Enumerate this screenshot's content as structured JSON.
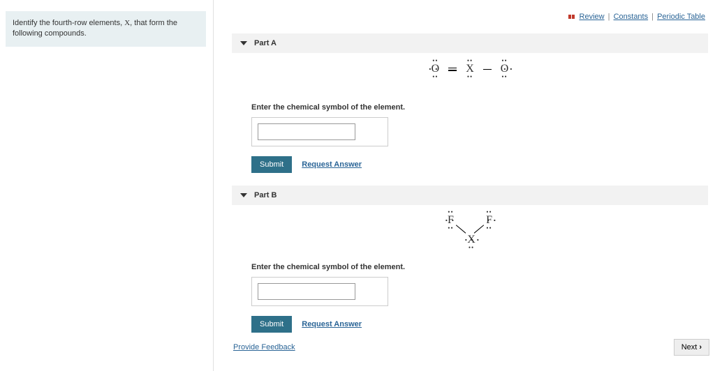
{
  "question": {
    "text_pre": "Identify the fourth-row elements, ",
    "variable": "X",
    "text_post": ", that form the following compounds."
  },
  "topLinks": {
    "review": "Review",
    "constants": "Constants",
    "periodic": "Periodic Table"
  },
  "partA": {
    "header": "Part A",
    "structure": {
      "left_atom": "O",
      "center_atom": "X",
      "right_atom": "O",
      "left_bond": "double",
      "right_bond": "single",
      "left_lonepairs": [
        "top",
        "bottom",
        "left"
      ],
      "center_lonepairs": [
        "top",
        "bottom"
      ],
      "right_lonepairs": [
        "top",
        "bottom",
        "right"
      ]
    },
    "prompt": "Enter the chemical symbol of the element.",
    "submit": "Submit",
    "request": "Request Answer",
    "input_value": ""
  },
  "partB": {
    "header": "Part B",
    "structure": {
      "left_atom": "F",
      "right_atom": "F",
      "center_atom": "X",
      "left_lonepairs": [
        "top",
        "left",
        "bottom"
      ],
      "right_lonepairs": [
        "top",
        "right",
        "bottom"
      ],
      "center_lonepairs": [
        "left",
        "bottom",
        "right"
      ]
    },
    "prompt": "Enter the chemical symbol of the element.",
    "submit": "Submit",
    "request": "Request Answer",
    "input_value": ""
  },
  "footer": {
    "feedback": "Provide Feedback",
    "next": "Next"
  },
  "colors": {
    "question_bg": "#e8f0f2",
    "part_header_bg": "#f2f2f2",
    "submit_bg": "#2e7089",
    "link_color": "#2a6496"
  }
}
